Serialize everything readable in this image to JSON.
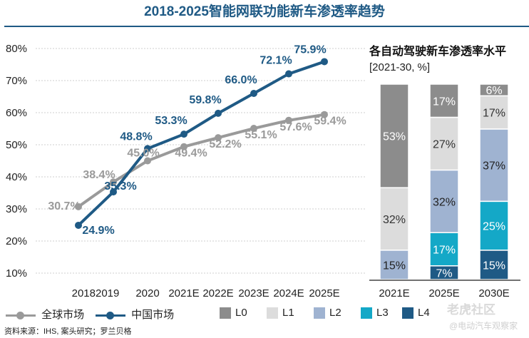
{
  "title": "2018-2025智能网联功能新车渗透率趋势",
  "source": "资料来源：IHS, 案头研究；罗兰贝格",
  "watermark": {
    "brand": "老虎社区",
    "account": "@电动汽车观察家"
  },
  "colors": {
    "global": "#9a9a9a",
    "china": "#1f5a85",
    "L0": "#8c8c8c",
    "L1": "#dcdcdc",
    "L2": "#9fb3d1",
    "L3": "#14a8c7",
    "L4": "#1f5a85"
  },
  "chart_data": [
    {
      "type": "line",
      "categories": [
        "2018",
        "2019",
        "2020",
        "2021E",
        "2022E",
        "2023E",
        "2024E",
        "2025E"
      ],
      "category_label_text": "20182019",
      "ylim": [
        0.08,
        0.82
      ],
      "yticks": [
        "80%",
        "70%",
        "60%",
        "50%",
        "40%",
        "30%",
        "20%",
        "10%"
      ],
      "series": [
        {
          "name": "全球市场",
          "values": [
            30.7,
            38.4,
            45.0,
            49.4,
            52.2,
            55.1,
            57.6,
            59.4
          ],
          "labels": [
            "30.7%",
            "38.4%",
            "45.0%",
            "49.4%",
            "52.2%",
            "55.1%",
            "57.6%",
            "59.4%"
          ]
        },
        {
          "name": "中国市场",
          "values": [
            24.9,
            35.3,
            48.8,
            53.3,
            59.8,
            66.0,
            72.1,
            75.9
          ],
          "labels": [
            "24.9%",
            "35.3%",
            "48.8%",
            "53.3%",
            "59.8%",
            "66.0%",
            "72.1%",
            "75.9%"
          ]
        }
      ]
    },
    {
      "type": "bar",
      "stacked": true,
      "title": "各自动驾驶新车渗透率水平",
      "subtitle": "[2021-30, %]",
      "categories": [
        "2021E",
        "2025E",
        "2030E"
      ],
      "levels": [
        "L0",
        "L1",
        "L2",
        "L3",
        "L4"
      ],
      "values": [
        [
          53,
          32,
          15,
          0,
          0
        ],
        [
          17,
          27,
          32,
          17,
          7
        ],
        [
          6,
          17,
          37,
          25,
          15
        ]
      ],
      "labels": [
        [
          "53%",
          "32%",
          "15%",
          "",
          ""
        ],
        [
          "17%",
          "27%",
          "32%",
          "17%",
          "7%"
        ],
        [
          "6%",
          "17%",
          "37%",
          "25%",
          "15%"
        ]
      ]
    }
  ]
}
